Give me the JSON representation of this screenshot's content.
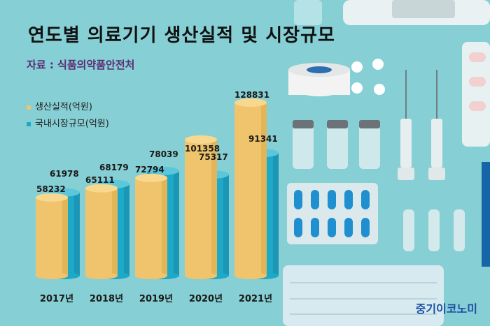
{
  "title": "연도별 의료기기 생산실적 및 시장규모",
  "source": "자료 : 식품의약품안전처",
  "brand": "중기이코노미",
  "colors": {
    "background": "#86cfd4",
    "production": "#f0c46c",
    "market": "#1fa9c9"
  },
  "chart_data": {
    "type": "bar",
    "categories": [
      "2017년",
      "2018년",
      "2019년",
      "2020년",
      "2021년"
    ],
    "series": [
      {
        "name": "생산실적(억원)",
        "values": [
          58232,
          65111,
          72794,
          101358,
          128831
        ],
        "color": "#f0c46c"
      },
      {
        "name": "국내시장규모(억원)",
        "values": [
          61978,
          68179,
          78039,
          75317,
          91341
        ],
        "color": "#1fa9c9"
      }
    ],
    "legend": "top-left",
    "grid": false
  }
}
